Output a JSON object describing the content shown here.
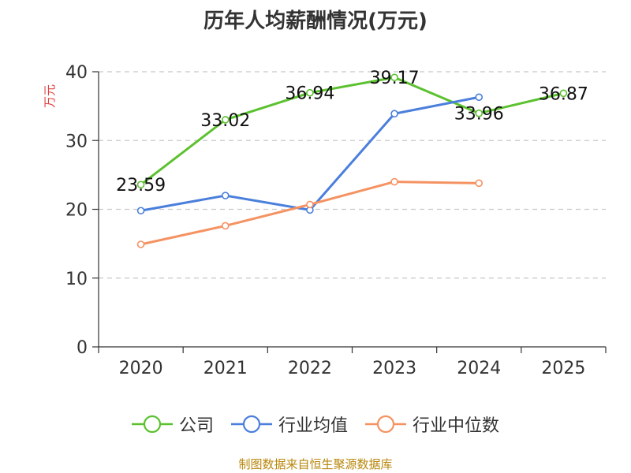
{
  "chart_data": {
    "type": "line",
    "title": "历年人均薪酬情况(万元)",
    "ylabel": "万元",
    "xlabel": "",
    "categories": [
      "2020",
      "2021",
      "2022",
      "2023",
      "2024",
      "2025"
    ],
    "ylim": [
      0,
      40
    ],
    "yticks": [
      0,
      10,
      20,
      30,
      40
    ],
    "grid": true,
    "legend_position": "bottom",
    "series": [
      {
        "name": "公司",
        "color": "#5cc12f",
        "values": [
          23.59,
          33.02,
          36.94,
          39.17,
          33.96,
          36.87
        ],
        "labels": [
          "23.59",
          "33.02",
          "36.94",
          "39.17",
          "33.96",
          "36.87"
        ]
      },
      {
        "name": "行业均值",
        "color": "#4a7fdc",
        "values": [
          19.8,
          22.0,
          19.9,
          33.9,
          36.3,
          null
        ]
      },
      {
        "name": "行业中位数",
        "color": "#f59262",
        "values": [
          14.9,
          17.6,
          20.7,
          24.0,
          23.8,
          null
        ]
      }
    ]
  },
  "footer": {
    "source": "制图数据来自恒生聚源数据库"
  }
}
